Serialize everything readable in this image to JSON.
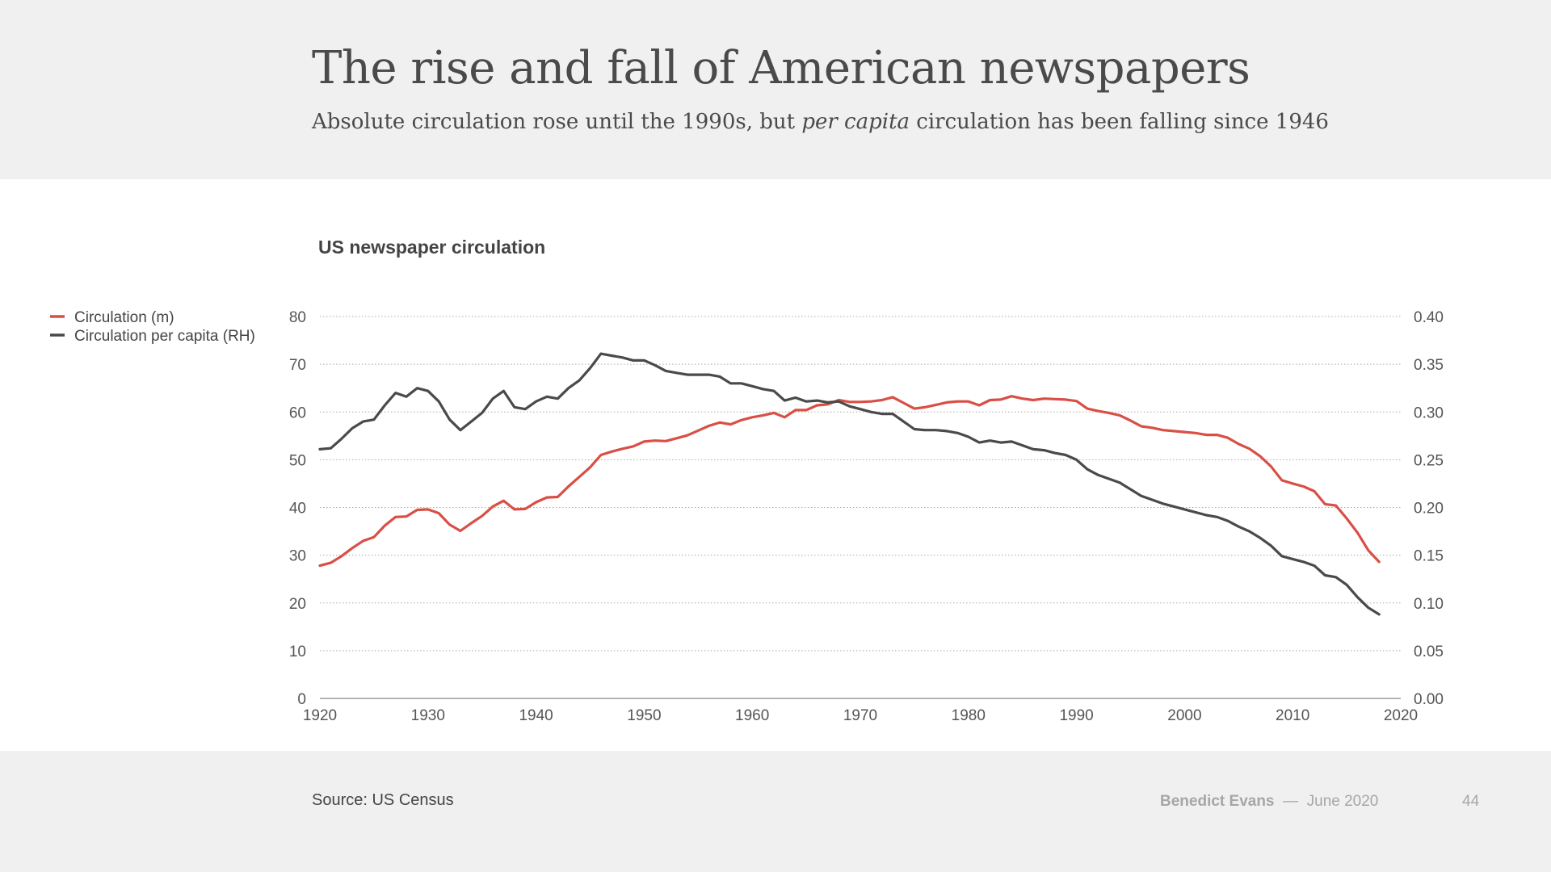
{
  "slide": {
    "title": "The rise and fall of  American newspapers",
    "subtitle_pre": "Absolute circulation rose until the 1990s, but ",
    "subtitle_em": "per capita",
    "subtitle_post": " circulation has been falling since 1946",
    "source": "Source: US Census",
    "author": "Benedict Evans",
    "separator": "—",
    "date": "June 2020",
    "page_number": "44"
  },
  "colors": {
    "circulation": "#d94f45",
    "per_capita": "#4a4a4a",
    "grid": "#aaaaaa",
    "axis_text": "#555555"
  },
  "chart_data": {
    "type": "line",
    "title": "US newspaper circulation",
    "grid": true,
    "legend_position": "top-left",
    "x_ticks": [
      "1920",
      "1930",
      "1940",
      "1950",
      "1960",
      "1970",
      "1980",
      "1990",
      "2000",
      "2010",
      "2020"
    ],
    "xlim": [
      1920,
      2020
    ],
    "y_left": {
      "lim": [
        0,
        80
      ],
      "ticks": [
        "0",
        "10",
        "20",
        "30",
        "40",
        "50",
        "60",
        "70",
        "80"
      ]
    },
    "y_right": {
      "lim": [
        0,
        0.4
      ],
      "ticks": [
        "0.00",
        "0.05",
        "0.10",
        "0.15",
        "0.20",
        "0.25",
        "0.30",
        "0.35",
        "0.40"
      ]
    },
    "series": [
      {
        "name": "Circulation (m)",
        "axis": "left",
        "color": "#d94f45",
        "x": [
          1920,
          1921,
          1922,
          1923,
          1924,
          1925,
          1926,
          1927,
          1928,
          1929,
          1930,
          1931,
          1932,
          1933,
          1934,
          1935,
          1936,
          1937,
          1938,
          1939,
          1940,
          1941,
          1942,
          1943,
          1944,
          1945,
          1946,
          1947,
          1948,
          1949,
          1950,
          1951,
          1952,
          1953,
          1954,
          1955,
          1956,
          1957,
          1958,
          1959,
          1960,
          1961,
          1962,
          1963,
          1964,
          1965,
          1966,
          1967,
          1968,
          1969,
          1970,
          1971,
          1972,
          1973,
          1974,
          1975,
          1976,
          1977,
          1978,
          1979,
          1980,
          1981,
          1982,
          1983,
          1984,
          1985,
          1986,
          1987,
          1988,
          1989,
          1990,
          1991,
          1992,
          1993,
          1994,
          1995,
          1996,
          1997,
          1998,
          1999,
          2000,
          2001,
          2002,
          2003,
          2004,
          2005,
          2006,
          2007,
          2008,
          2009,
          2010,
          2011,
          2012,
          2013,
          2014,
          2015,
          2016,
          2017,
          2018
        ],
        "y": [
          27.8,
          28.4,
          29.8,
          31.5,
          33.0,
          33.8,
          36.2,
          38.0,
          38.1,
          39.5,
          39.6,
          38.8,
          36.4,
          35.1,
          36.7,
          38.2,
          40.2,
          41.4,
          39.6,
          39.7,
          41.1,
          42.1,
          42.2,
          44.4,
          46.4,
          48.4,
          51.0,
          51.7,
          52.3,
          52.8,
          53.8,
          54.0,
          53.9,
          54.5,
          55.1,
          56.1,
          57.1,
          57.8,
          57.4,
          58.3,
          58.9,
          59.3,
          59.8,
          58.9,
          60.4,
          60.4,
          61.4,
          61.6,
          62.5,
          62.1,
          62.1,
          62.2,
          62.5,
          63.1,
          61.9,
          60.7,
          61.0,
          61.5,
          62.0,
          62.2,
          62.2,
          61.4,
          62.5,
          62.6,
          63.3,
          62.8,
          62.5,
          62.8,
          62.7,
          62.6,
          62.3,
          60.7,
          60.2,
          59.8,
          59.3,
          58.2,
          57.0,
          56.7,
          56.2,
          56.0,
          55.8,
          55.6,
          55.2,
          55.2,
          54.6,
          53.3,
          52.3,
          50.7,
          48.6,
          45.7,
          45.0,
          44.4,
          43.4,
          40.7,
          40.4,
          37.7,
          34.7,
          31.0,
          28.6
        ]
      },
      {
        "name": "Circulation per capita (RH)",
        "axis": "right",
        "color": "#4a4a4a",
        "x": [
          1920,
          1921,
          1922,
          1923,
          1924,
          1925,
          1926,
          1927,
          1928,
          1929,
          1930,
          1931,
          1932,
          1933,
          1934,
          1935,
          1936,
          1937,
          1938,
          1939,
          1940,
          1941,
          1942,
          1943,
          1944,
          1945,
          1946,
          1947,
          1948,
          1949,
          1950,
          1951,
          1952,
          1953,
          1954,
          1955,
          1956,
          1957,
          1958,
          1959,
          1960,
          1961,
          1962,
          1963,
          1964,
          1965,
          1966,
          1967,
          1968,
          1969,
          1970,
          1971,
          1972,
          1973,
          1974,
          1975,
          1976,
          1977,
          1978,
          1979,
          1980,
          1981,
          1982,
          1983,
          1984,
          1985,
          1986,
          1987,
          1988,
          1989,
          1990,
          1991,
          1992,
          1993,
          1994,
          1995,
          1996,
          1997,
          1998,
          1999,
          2000,
          2001,
          2002,
          2003,
          2004,
          2005,
          2006,
          2007,
          2008,
          2009,
          2010,
          2011,
          2012,
          2013,
          2014,
          2015,
          2016,
          2017,
          2018
        ],
        "y": [
          0.261,
          0.262,
          0.272,
          0.283,
          0.29,
          0.292,
          0.307,
          0.32,
          0.316,
          0.325,
          0.322,
          0.311,
          0.292,
          0.281,
          0.29,
          0.299,
          0.314,
          0.322,
          0.305,
          0.303,
          0.311,
          0.316,
          0.314,
          0.325,
          0.333,
          0.346,
          0.361,
          0.359,
          0.357,
          0.354,
          0.354,
          0.349,
          0.343,
          0.341,
          0.339,
          0.339,
          0.339,
          0.337,
          0.33,
          0.33,
          0.327,
          0.324,
          0.322,
          0.312,
          0.315,
          0.311,
          0.312,
          0.31,
          0.311,
          0.306,
          0.303,
          0.3,
          0.298,
          0.298,
          0.29,
          0.282,
          0.281,
          0.281,
          0.28,
          0.278,
          0.274,
          0.268,
          0.27,
          0.268,
          0.269,
          0.265,
          0.261,
          0.26,
          0.257,
          0.255,
          0.25,
          0.24,
          0.234,
          0.23,
          0.226,
          0.219,
          0.212,
          0.208,
          0.204,
          0.201,
          0.198,
          0.195,
          0.192,
          0.19,
          0.186,
          0.18,
          0.175,
          0.168,
          0.16,
          0.149,
          0.146,
          0.143,
          0.139,
          0.129,
          0.127,
          0.119,
          0.106,
          0.095,
          0.088
        ]
      }
    ]
  }
}
